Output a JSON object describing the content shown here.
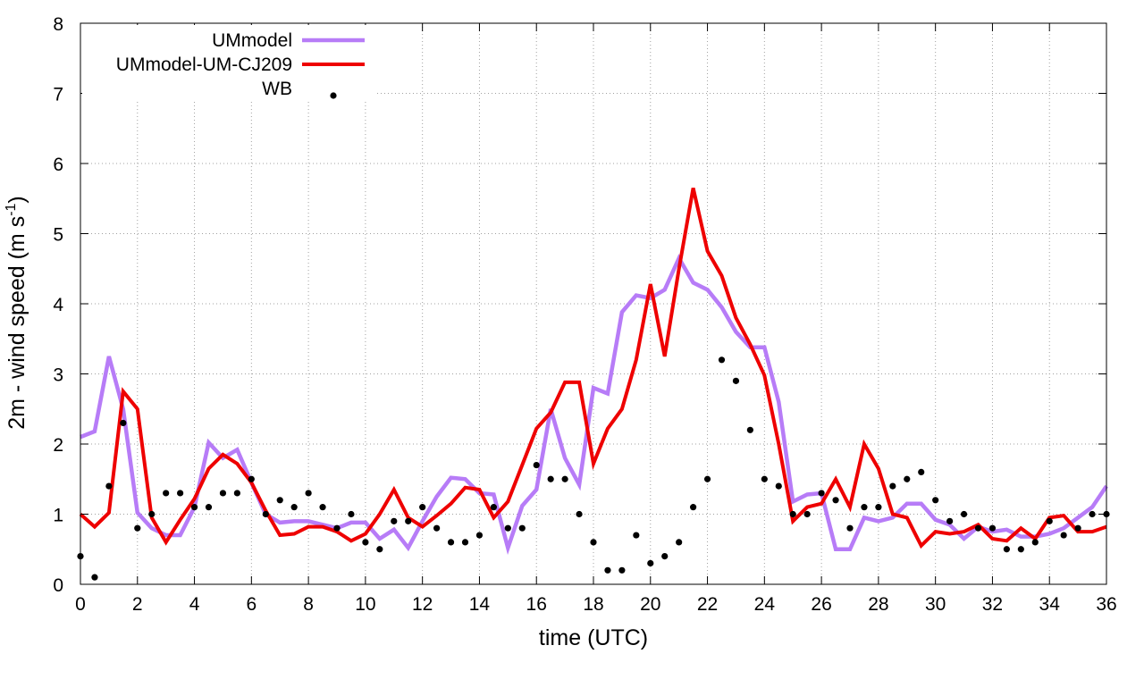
{
  "chart_data": {
    "type": "line",
    "title": "",
    "xlabel": "time (UTC)",
    "ylabel_main": "2m - wind speed  (m s",
    "ylabel_sup": "-1",
    "ylabel_close": ")",
    "xlim": [
      0,
      36
    ],
    "ylim": [
      0,
      8
    ],
    "xticks": [
      0,
      2,
      4,
      6,
      8,
      10,
      12,
      14,
      16,
      18,
      20,
      22,
      24,
      26,
      28,
      30,
      32,
      34,
      36
    ],
    "yticks": [
      0,
      1,
      2,
      3,
      4,
      5,
      6,
      7,
      8
    ],
    "grid": true,
    "legend_position": "top-left",
    "series": [
      {
        "name": "UMmodel",
        "style": "line",
        "color": "#b77cf7",
        "x": [
          0,
          0.5,
          1,
          1.5,
          2,
          2.5,
          3,
          3.5,
          4,
          4.5,
          5,
          5.5,
          6,
          6.5,
          7,
          7.5,
          8,
          8.5,
          9,
          9.5,
          10,
          10.5,
          11,
          11.5,
          12,
          12.5,
          13,
          13.5,
          14,
          14.5,
          15,
          15.5,
          16,
          16.5,
          17,
          17.5,
          18,
          18.5,
          19,
          19.5,
          20,
          20.5,
          21,
          21.5,
          22,
          22.5,
          23,
          23.5,
          24,
          24.5,
          25,
          25.5,
          26,
          26.5,
          27,
          27.5,
          28,
          28.5,
          29,
          29.5,
          30,
          30.5,
          31,
          31.5,
          32,
          32.5,
          33,
          33.5,
          34,
          34.5,
          35,
          35.5,
          36
        ],
        "y": [
          2.1,
          2.18,
          3.25,
          2.5,
          1.02,
          0.8,
          0.7,
          0.7,
          1.1,
          2.02,
          1.8,
          1.92,
          1.45,
          1.0,
          0.88,
          0.9,
          0.9,
          0.85,
          0.8,
          0.88,
          0.88,
          0.65,
          0.78,
          0.52,
          0.9,
          1.25,
          1.52,
          1.5,
          1.3,
          1.28,
          0.52,
          1.12,
          1.35,
          2.5,
          1.8,
          1.42,
          2.8,
          2.72,
          3.88,
          4.12,
          4.08,
          4.2,
          4.65,
          4.3,
          4.2,
          3.95,
          3.6,
          3.38,
          3.38,
          2.6,
          1.18,
          1.28,
          1.3,
          0.5,
          0.5,
          0.95,
          0.9,
          0.95,
          1.15,
          1.15,
          0.92,
          0.85,
          0.65,
          0.82,
          0.75,
          0.78,
          0.68,
          0.68,
          0.72,
          0.8,
          0.95,
          1.1,
          1.4
        ]
      },
      {
        "name": "UMmodel-UM-CJ209",
        "style": "line",
        "color": "#ee0000",
        "x": [
          0,
          0.5,
          1,
          1.5,
          2,
          2.5,
          3,
          3.5,
          4,
          4.5,
          5,
          5.5,
          6,
          6.5,
          7,
          7.5,
          8,
          8.5,
          9,
          9.5,
          10,
          10.5,
          11,
          11.5,
          12,
          12.5,
          13,
          13.5,
          14,
          14.5,
          15,
          15.5,
          16,
          16.5,
          17,
          17.5,
          18,
          18.5,
          19,
          19.5,
          20,
          20.5,
          21,
          21.5,
          22,
          22.5,
          23,
          23.5,
          24,
          24.5,
          25,
          25.5,
          26,
          26.5,
          27,
          27.5,
          28,
          28.5,
          29,
          29.5,
          30,
          30.5,
          31,
          31.5,
          32,
          32.5,
          33,
          33.5,
          34,
          34.5,
          35,
          35.5,
          36
        ],
        "y": [
          1.0,
          0.82,
          1.02,
          2.75,
          2.5,
          0.95,
          0.6,
          0.92,
          1.22,
          1.65,
          1.85,
          1.72,
          1.45,
          1.05,
          0.7,
          0.72,
          0.82,
          0.82,
          0.75,
          0.62,
          0.72,
          1.0,
          1.35,
          0.95,
          0.82,
          0.98,
          1.15,
          1.38,
          1.35,
          0.95,
          1.18,
          1.7,
          2.22,
          2.45,
          2.88,
          2.88,
          1.72,
          2.22,
          2.5,
          3.2,
          4.28,
          3.25,
          4.5,
          5.65,
          4.75,
          4.4,
          3.8,
          3.42,
          2.98,
          2.0,
          0.9,
          1.1,
          1.15,
          1.5,
          1.1,
          2.0,
          1.65,
          1.0,
          0.95,
          0.55,
          0.75,
          0.72,
          0.75,
          0.85,
          0.65,
          0.62,
          0.8,
          0.65,
          0.95,
          0.98,
          0.75,
          0.75,
          0.82
        ]
      },
      {
        "name": "WB",
        "style": "points",
        "color": "#000000",
        "x": [
          0,
          0.5,
          1,
          1.5,
          2,
          2.5,
          3,
          3.5,
          4,
          4.5,
          5,
          5.5,
          6,
          6.5,
          7,
          7.5,
          8,
          8.5,
          9,
          9.5,
          10,
          10.5,
          11,
          11.5,
          12,
          12.5,
          13,
          13.5,
          14,
          14.5,
          15,
          15.5,
          16,
          16.5,
          17,
          17.5,
          18,
          18.5,
          19,
          19.5,
          20,
          20.5,
          21,
          21.5,
          22,
          22.5,
          23,
          23.5,
          24,
          24.5,
          25,
          25.5,
          26,
          26.5,
          27,
          27.5,
          28,
          28.5,
          29,
          29.5,
          30,
          30.5,
          31,
          31.5,
          32,
          32.5,
          33,
          33.5,
          34,
          34.5,
          35,
          35.5,
          36
        ],
        "y": [
          0.4,
          0.1,
          1.4,
          2.3,
          0.8,
          1.0,
          1.3,
          1.3,
          1.1,
          1.1,
          1.3,
          1.3,
          1.5,
          1.0,
          1.2,
          1.1,
          1.3,
          1.1,
          0.8,
          1.0,
          0.6,
          0.5,
          0.9,
          0.9,
          1.1,
          0.8,
          0.6,
          0.6,
          0.7,
          1.1,
          0.8,
          0.8,
          1.7,
          1.5,
          1.5,
          1.0,
          0.6,
          0.2,
          0.2,
          0.7,
          0.3,
          0.4,
          0.6,
          1.1,
          1.5,
          3.2,
          2.9,
          2.2,
          1.5,
          1.4,
          1.0,
          1.0,
          1.3,
          1.2,
          0.8,
          1.1,
          1.1,
          1.4,
          1.5,
          1.6,
          1.2,
          0.9,
          1.0,
          0.8,
          0.8,
          0.5,
          0.5,
          0.6,
          0.9,
          0.7,
          0.8,
          1.0,
          1.0
        ]
      }
    ]
  }
}
